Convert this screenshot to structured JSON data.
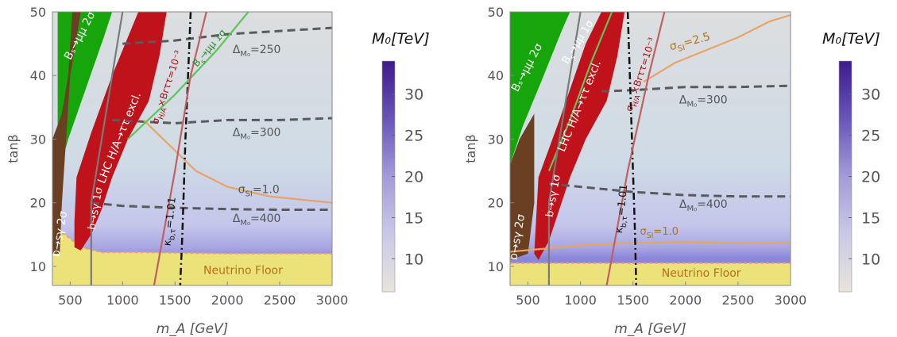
{
  "chart_data": [
    {
      "type": "heatmap",
      "panel": "left",
      "xlabel": "m_A [GeV]",
      "ylabel": "tanβ",
      "xlim": [
        330,
        3000
      ],
      "ylim": [
        7,
        50
      ],
      "xticks": [
        500,
        1000,
        1500,
        2000,
        2500,
        3000
      ],
      "yticks": [
        10,
        20,
        30,
        40,
        50
      ],
      "colorbar": {
        "title": "M₀[TeV]",
        "ticks": [
          10,
          15,
          20,
          25,
          30
        ],
        "range": [
          6,
          34
        ],
        "colors": [
          "#e9e4dc",
          "#c9c9e6",
          "#a39bd9",
          "#6a55b8",
          "#3e1b8c"
        ]
      },
      "regions": {
        "neutrino_floor": {
          "label": "Neutrino Floor",
          "color": "#ece27a",
          "boundary": [
            [
              330,
              16
            ],
            [
              450,
              15
            ],
            [
              600,
              13
            ],
            [
              800,
              12.2
            ],
            [
              1200,
              12.2
            ],
            [
              2000,
              12.0
            ],
            [
              3000,
              12.0
            ]
          ]
        },
        "lhc_exclusion": {
          "label": "LHC H/A→ττ excl.",
          "color": "#c0121a",
          "boundary": [
            [
              540,
              17
            ],
            [
              560,
              24
            ],
            [
              700,
              31
            ],
            [
              900,
              40
            ],
            [
              1150,
              50
            ],
            [
              1420,
              50
            ],
            [
              1350,
              43
            ],
            [
              1250,
              36
            ],
            [
              1050,
              30
            ],
            [
              900,
              24
            ],
            [
              800,
              19
            ],
            [
              700,
              15
            ],
            [
              600,
              12.5
            ],
            [
              540,
              13
            ]
          ]
        },
        "bs_mumu_2sigma": {
          "label": "Bₛ→μμ 2σ",
          "color": "#16a50a",
          "boundary": [
            [
              380,
              24
            ],
            [
              480,
              30
            ],
            [
              650,
              38
            ],
            [
              820,
              46
            ],
            [
              900,
              50
            ],
            [
              380,
              50
            ]
          ]
        },
        "b_sgamma_2sigma": {
          "label": "b→sγ 2σ",
          "color": "#6a3f22",
          "boundary": [
            [
              330,
              12
            ],
            [
              330,
              30
            ],
            [
              420,
              34
            ],
            [
              480,
              40
            ],
            [
              520,
              50
            ],
            [
              600,
              50
            ],
            [
              500,
              40
            ],
            [
              420,
              20
            ],
            [
              400,
              12
            ]
          ]
        }
      },
      "contours": [
        {
          "label": "Δ_{M₀}=250",
          "text": "Δ",
          "sub": "M₀",
          "value": "=250",
          "style": "dashed",
          "color": "#5a5a5a",
          "points": [
            [
              1000,
              45.0
            ],
            [
              1500,
              45.5
            ],
            [
              2000,
              46.5
            ],
            [
              2500,
              47.0
            ],
            [
              3000,
              47.5
            ]
          ]
        },
        {
          "label": "Δ_{M₀}=300",
          "text": "Δ",
          "sub": "M₀",
          "value": "=300",
          "style": "dashed",
          "color": "#5a5a5a",
          "points": [
            [
              900,
              33.0
            ],
            [
              1500,
              32.5
            ],
            [
              2000,
              33.0
            ],
            [
              2500,
              33.0
            ],
            [
              3000,
              33.3
            ]
          ]
        },
        {
          "label": "Δ_{M₀}=400",
          "text": "Δ",
          "sub": "M₀",
          "value": "=400",
          "style": "dashed",
          "color": "#5a5a5a",
          "points": [
            [
              700,
              20.0
            ],
            [
              1000,
              19.5
            ],
            [
              1500,
              19.2
            ],
            [
              2000,
              19.0
            ],
            [
              2500,
              18.9
            ],
            [
              3000,
              18.9
            ]
          ]
        },
        {
          "label": "σ_SI=1.0",
          "text": "σ",
          "sub": "SI",
          "value": "=1.0",
          "style": "solid",
          "color": "#e9a365",
          "points": [
            [
              1200,
              33
            ],
            [
              1450,
              29
            ],
            [
              1700,
              25
            ],
            [
              2000,
              22.5
            ],
            [
              2400,
              21
            ],
            [
              3000,
              20
            ]
          ]
        },
        {
          "label": "κ_{b,τ}=1.01",
          "text": "κ",
          "sub": "b,τ",
          "value": "=1.01",
          "style": "dashdot",
          "color": "#111111",
          "points": [
            [
              1650,
              50
            ],
            [
              1600,
              30
            ],
            [
              1570,
              15
            ],
            [
              1550,
              7
            ]
          ]
        },
        {
          "label": "Bₛ→μμ 1σ",
          "text": "B",
          "sub": "s",
          "value": "→μμ 1σ",
          "style": "solid",
          "color": "#5ec45b",
          "points": [
            [
              1050,
              30
            ],
            [
              1500,
              37
            ],
            [
              1900,
              44
            ],
            [
              2200,
              50
            ]
          ]
        },
        {
          "label": "b→sγ 1σ",
          "text": "b→sγ 1σ",
          "sub": "",
          "value": "",
          "style": "solid",
          "color": "#7a7a7a",
          "points": [
            [
              700,
              7
            ],
            [
              700,
              20
            ],
            [
              800,
              30
            ],
            [
              1000,
              50
            ]
          ]
        },
        {
          "label": "σ^{prod}_{H/A}×Br_{ττ}=10⁻³",
          "text": "σ",
          "sub": "H/A",
          "value": "×Brττ=10⁻³",
          "style": "solid",
          "color": "#c06060",
          "points": [
            [
              1300,
              7
            ],
            [
              1500,
              25
            ],
            [
              1650,
              40
            ],
            [
              1800,
              50
            ]
          ]
        }
      ]
    },
    {
      "type": "heatmap",
      "panel": "right",
      "xlabel": "m_A [GeV]",
      "ylabel": "tanβ",
      "xlim": [
        330,
        3000
      ],
      "ylim": [
        7,
        50
      ],
      "xticks": [
        500,
        1000,
        1500,
        2000,
        2500,
        3000
      ],
      "yticks": [
        10,
        20,
        30,
        40,
        50
      ],
      "colorbar": {
        "title": "M₀[TeV]",
        "ticks": [
          10,
          15,
          20,
          25,
          30
        ],
        "range": [
          6,
          34
        ],
        "colors": [
          "#e9e4dc",
          "#c9c9e6",
          "#a39bd9",
          "#6a55b8",
          "#3e1b8c"
        ]
      },
      "regions": {
        "neutrino_floor": {
          "label": "Neutrino Floor",
          "color": "#ece27a",
          "boundary": [
            [
              330,
              10.5
            ],
            [
              1000,
              10.5
            ],
            [
              2000,
              10.5
            ],
            [
              3000,
              10.5
            ]
          ]
        },
        "lhc_exclusion": {
          "label": "LHC H/A→ττ excl.",
          "color": "#c0121a",
          "boundary": [
            [
              560,
              12
            ],
            [
              600,
              24
            ],
            [
              800,
              33
            ],
            [
              1050,
              45
            ],
            [
              1200,
              50
            ],
            [
              1420,
              50
            ],
            [
              1350,
              43
            ],
            [
              1250,
              36
            ],
            [
              1050,
              30
            ],
            [
              900,
              24
            ],
            [
              800,
              19
            ],
            [
              700,
              14
            ],
            [
              600,
              11
            ]
          ]
        },
        "bs_mumu_2sigma": {
          "label": "Bₛ→μμ 2σ",
          "color": "#16a50a",
          "boundary": [
            [
              330,
              26
            ],
            [
              450,
              32
            ],
            [
              650,
              40
            ],
            [
              820,
              47
            ],
            [
              900,
              50
            ],
            [
              330,
              50
            ]
          ]
        },
        "b_sgamma_2sigma": {
          "label": "b→sγ 2σ",
          "color": "#6a3f22",
          "boundary": [
            [
              330,
              11
            ],
            [
              330,
              26
            ],
            [
              420,
              30
            ],
            [
              560,
              34
            ],
            [
              560,
              20
            ],
            [
              500,
              12
            ]
          ]
        }
      },
      "contours": [
        {
          "label": "Δ_{M₀}=300",
          "text": "Δ",
          "sub": "M₀",
          "value": "=300",
          "style": "dashed",
          "color": "#5a5a5a",
          "points": [
            [
              1200,
              37.5
            ],
            [
              1500,
              37.7
            ],
            [
              2000,
              38.2
            ],
            [
              2500,
              38.2
            ],
            [
              3000,
              38.4
            ]
          ]
        },
        {
          "label": "Δ_{M₀}=400",
          "text": "Δ",
          "sub": "M₀",
          "value": "=400",
          "style": "dashed",
          "color": "#5a5a5a",
          "points": [
            [
              700,
              23.0
            ],
            [
              1000,
              22.5
            ],
            [
              1500,
              21.7
            ],
            [
              2000,
              21.2
            ],
            [
              2500,
              21.0
            ],
            [
              3000,
              21.0
            ]
          ]
        },
        {
          "label": "σ_SI=2.5",
          "text": "σ",
          "sub": "SI",
          "value": "=2.5",
          "style": "solid",
          "color": "#e9a365",
          "points": [
            [
              1600,
              39
            ],
            [
              1900,
              42
            ],
            [
              2200,
              44
            ],
            [
              2500,
              46
            ],
            [
              2800,
              48.5
            ],
            [
              3000,
              49.5
            ]
          ]
        },
        {
          "label": "σ_SI=1.0",
          "text": "σ",
          "sub": "SI",
          "value": "=1.0",
          "style": "solid",
          "color": "#e9a365",
          "points": [
            [
              330,
              12.3
            ],
            [
              1000,
              13.3
            ],
            [
              1500,
              13.7
            ],
            [
              2000,
              13.8
            ],
            [
              2500,
              13.7
            ],
            [
              3000,
              13.6
            ]
          ]
        },
        {
          "label": "κ_{b,τ}=1.01",
          "text": "κ",
          "sub": "b,τ",
          "value": "=1.01",
          "style": "dashdot",
          "color": "#111111",
          "points": [
            [
              1450,
              50
            ],
            [
              1490,
              30
            ],
            [
              1520,
              15
            ],
            [
              1530,
              7
            ]
          ]
        },
        {
          "label": "Bₛ→μμ 1σ",
          "text": "B",
          "sub": "s",
          "value": "→μμ 1σ",
          "style": "solid",
          "color": "#5ec45b",
          "points": [
            [
              700,
              25
            ],
            [
              900,
              33
            ],
            [
              1100,
              42
            ],
            [
              1300,
              50
            ]
          ]
        },
        {
          "label": "b→sγ 1σ",
          "text": "b→sγ 1σ",
          "sub": "",
          "value": "",
          "style": "solid",
          "color": "#7a7a7a",
          "points": [
            [
              700,
              7
            ],
            [
              700,
              20
            ],
            [
              800,
              30
            ],
            [
              1000,
              50
            ]
          ]
        },
        {
          "label": "σ^{prod}_{H/A}×Br_{ττ}=10⁻³",
          "text": "σ",
          "sub": "H/A",
          "value": "×Brττ=10⁻³",
          "style": "solid",
          "color": "#c06060",
          "points": [
            [
              1250,
              7
            ],
            [
              1450,
              25
            ],
            [
              1650,
              40
            ],
            [
              1800,
              50
            ]
          ]
        }
      ]
    }
  ]
}
